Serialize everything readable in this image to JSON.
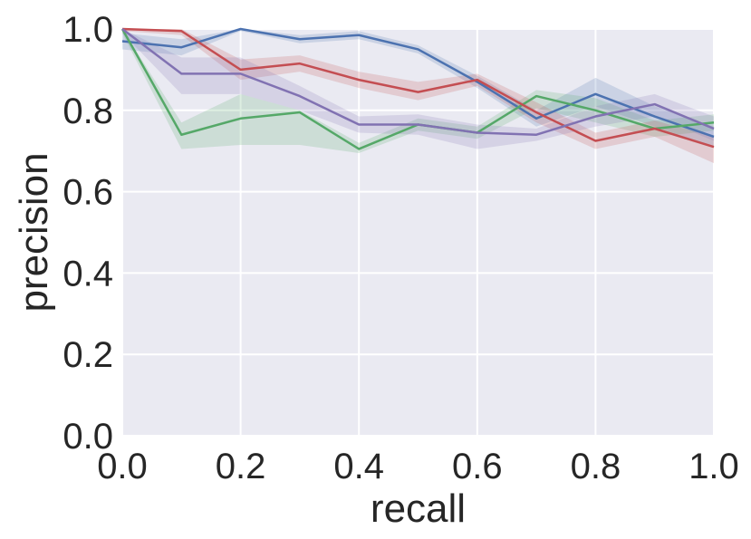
{
  "chart_data": {
    "type": "line",
    "title": "",
    "xlabel": "recall",
    "ylabel": "precision",
    "xlim": [
      0.0,
      1.0
    ],
    "ylim": [
      0.0,
      1.0
    ],
    "grid": true,
    "legend": "none",
    "background": "#eaeaf2",
    "x_ticks": [
      "0.0",
      "0.2",
      "0.4",
      "0.6",
      "0.8",
      "1.0"
    ],
    "y_ticks": [
      "0.0",
      "0.2",
      "0.4",
      "0.6",
      "0.8",
      "1.0"
    ],
    "x": [
      0.0,
      0.1,
      0.2,
      0.3,
      0.4,
      0.5,
      0.6,
      0.7,
      0.8,
      0.9,
      1.0
    ],
    "series": [
      {
        "color": "#4c72b0",
        "values": [
          0.97,
          0.955,
          1.0,
          0.975,
          0.985,
          0.95,
          0.87,
          0.78,
          0.84,
          0.785,
          0.735
        ],
        "lower": [
          0.95,
          0.935,
          0.995,
          0.965,
          0.975,
          0.94,
          0.855,
          0.76,
          0.81,
          0.76,
          0.71
        ],
        "upper": [
          0.99,
          0.975,
          1.0,
          0.985,
          0.995,
          0.96,
          0.885,
          0.8,
          0.88,
          0.81,
          0.76
        ]
      },
      {
        "color": "#55a868",
        "values": [
          1.0,
          0.74,
          0.78,
          0.795,
          0.705,
          0.765,
          0.745,
          0.835,
          0.8,
          0.755,
          0.77
        ],
        "lower": [
          0.99,
          0.705,
          0.715,
          0.715,
          0.695,
          0.75,
          0.73,
          0.805,
          0.77,
          0.735,
          0.75
        ],
        "upper": [
          1.0,
          0.77,
          0.84,
          0.8,
          0.72,
          0.78,
          0.76,
          0.85,
          0.83,
          0.775,
          0.79
        ]
      },
      {
        "color": "#c44e52",
        "values": [
          1.0,
          0.995,
          0.9,
          0.915,
          0.875,
          0.845,
          0.875,
          0.795,
          0.725,
          0.755,
          0.71
        ],
        "lower": [
          0.995,
          0.985,
          0.875,
          0.895,
          0.855,
          0.825,
          0.86,
          0.77,
          0.705,
          0.735,
          0.67
        ],
        "upper": [
          1.0,
          1.0,
          0.925,
          0.935,
          0.895,
          0.87,
          0.89,
          0.82,
          0.745,
          0.775,
          0.735
        ]
      },
      {
        "color": "#8172b2",
        "values": [
          1.0,
          0.89,
          0.89,
          0.835,
          0.765,
          0.765,
          0.745,
          0.74,
          0.785,
          0.815,
          0.755
        ],
        "lower": [
          0.99,
          0.84,
          0.84,
          0.8,
          0.745,
          0.74,
          0.705,
          0.725,
          0.76,
          0.785,
          0.725
        ],
        "upper": [
          1.0,
          0.93,
          0.93,
          0.86,
          0.785,
          0.79,
          0.765,
          0.755,
          0.81,
          0.84,
          0.785
        ]
      }
    ]
  }
}
